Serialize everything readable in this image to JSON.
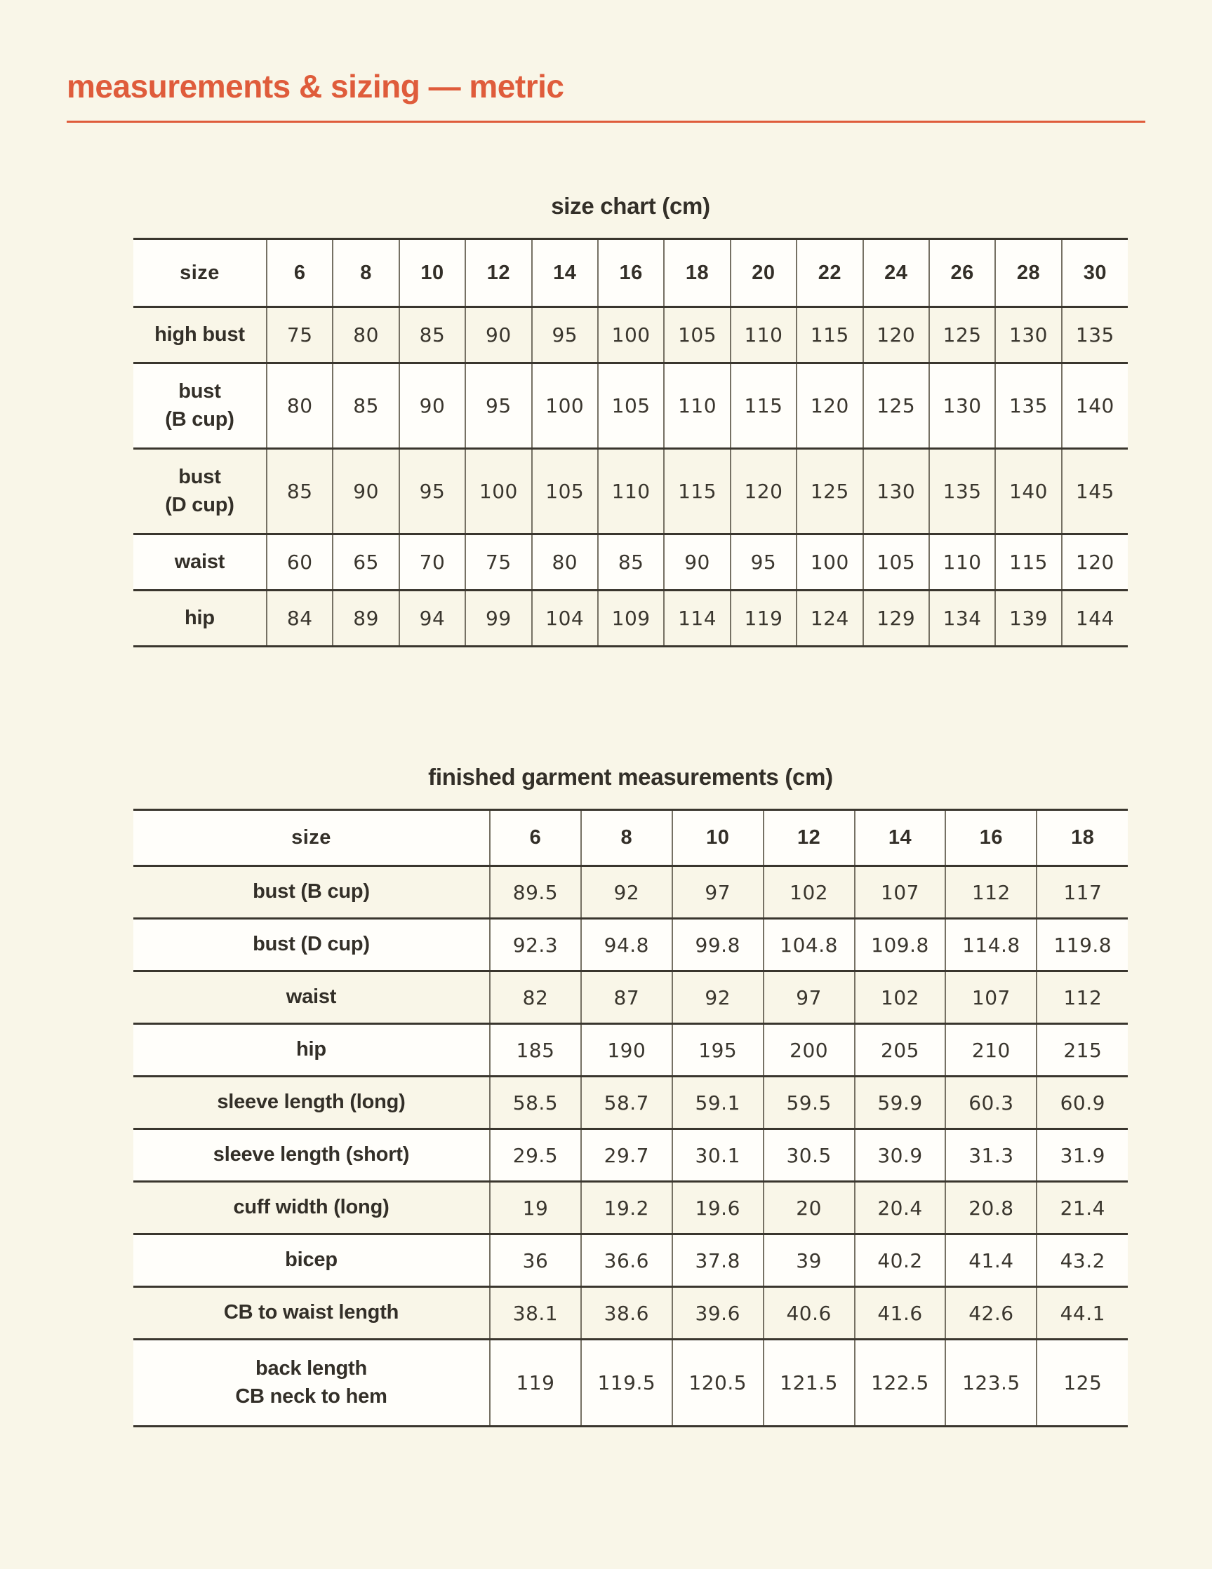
{
  "page": {
    "title": "measurements & sizing — metric",
    "accent_color": "#df5c3b",
    "background_color": "#f9f6e8"
  },
  "size_chart": {
    "title": "size chart (cm)",
    "header": [
      "size",
      "6",
      "8",
      "10",
      "12",
      "14",
      "16",
      "18",
      "20",
      "22",
      "24",
      "26",
      "28",
      "30"
    ],
    "rows": [
      {
        "label_lines": [
          "high bust"
        ],
        "values": [
          "75",
          "80",
          "85",
          "90",
          "95",
          "100",
          "105",
          "110",
          "115",
          "120",
          "125",
          "130",
          "135"
        ]
      },
      {
        "label_lines": [
          "bust",
          "(B cup)"
        ],
        "values": [
          "80",
          "85",
          "90",
          "95",
          "100",
          "105",
          "110",
          "115",
          "120",
          "125",
          "130",
          "135",
          "140"
        ]
      },
      {
        "label_lines": [
          "bust",
          "(D cup)"
        ],
        "values": [
          "85",
          "90",
          "95",
          "100",
          "105",
          "110",
          "115",
          "120",
          "125",
          "130",
          "135",
          "140",
          "145"
        ]
      },
      {
        "label_lines": [
          "waist"
        ],
        "values": [
          "60",
          "65",
          "70",
          "75",
          "80",
          "85",
          "90",
          "95",
          "100",
          "105",
          "110",
          "115",
          "120"
        ]
      },
      {
        "label_lines": [
          "hip"
        ],
        "values": [
          "84",
          "89",
          "94",
          "99",
          "104",
          "109",
          "114",
          "119",
          "124",
          "129",
          "134",
          "139",
          "144"
        ]
      }
    ]
  },
  "finished_chart": {
    "title": "finished garment measurements (cm)",
    "header": [
      "size",
      "6",
      "8",
      "10",
      "12",
      "14",
      "16",
      "18"
    ],
    "rows": [
      {
        "label_lines": [
          "bust (B cup)"
        ],
        "values": [
          "89.5",
          "92",
          "97",
          "102",
          "107",
          "112",
          "117"
        ]
      },
      {
        "label_lines": [
          "bust (D cup)"
        ],
        "values": [
          "92.3",
          "94.8",
          "99.8",
          "104.8",
          "109.8",
          "114.8",
          "119.8"
        ]
      },
      {
        "label_lines": [
          "waist"
        ],
        "values": [
          "82",
          "87",
          "92",
          "97",
          "102",
          "107",
          "112"
        ]
      },
      {
        "label_lines": [
          "hip"
        ],
        "values": [
          "185",
          "190",
          "195",
          "200",
          "205",
          "210",
          "215"
        ]
      },
      {
        "label_lines": [
          "sleeve length (long)"
        ],
        "values": [
          "58.5",
          "58.7",
          "59.1",
          "59.5",
          "59.9",
          "60.3",
          "60.9"
        ]
      },
      {
        "label_lines": [
          "sleeve length (short)"
        ],
        "values": [
          "29.5",
          "29.7",
          "30.1",
          "30.5",
          "30.9",
          "31.3",
          "31.9"
        ]
      },
      {
        "label_lines": [
          "cuff width (long)"
        ],
        "values": [
          "19",
          "19.2",
          "19.6",
          "20",
          "20.4",
          "20.8",
          "21.4"
        ]
      },
      {
        "label_lines": [
          "bicep"
        ],
        "values": [
          "36",
          "36.6",
          "37.8",
          "39",
          "40.2",
          "41.4",
          "43.2"
        ]
      },
      {
        "label_lines": [
          "CB to waist length"
        ],
        "values": [
          "38.1",
          "38.6",
          "39.6",
          "40.6",
          "41.6",
          "42.6",
          "44.1"
        ]
      },
      {
        "label_lines": [
          "back length",
          "CB neck to hem"
        ],
        "values": [
          "119",
          "119.5",
          "120.5",
          "121.5",
          "122.5",
          "123.5",
          "125"
        ]
      }
    ]
  }
}
